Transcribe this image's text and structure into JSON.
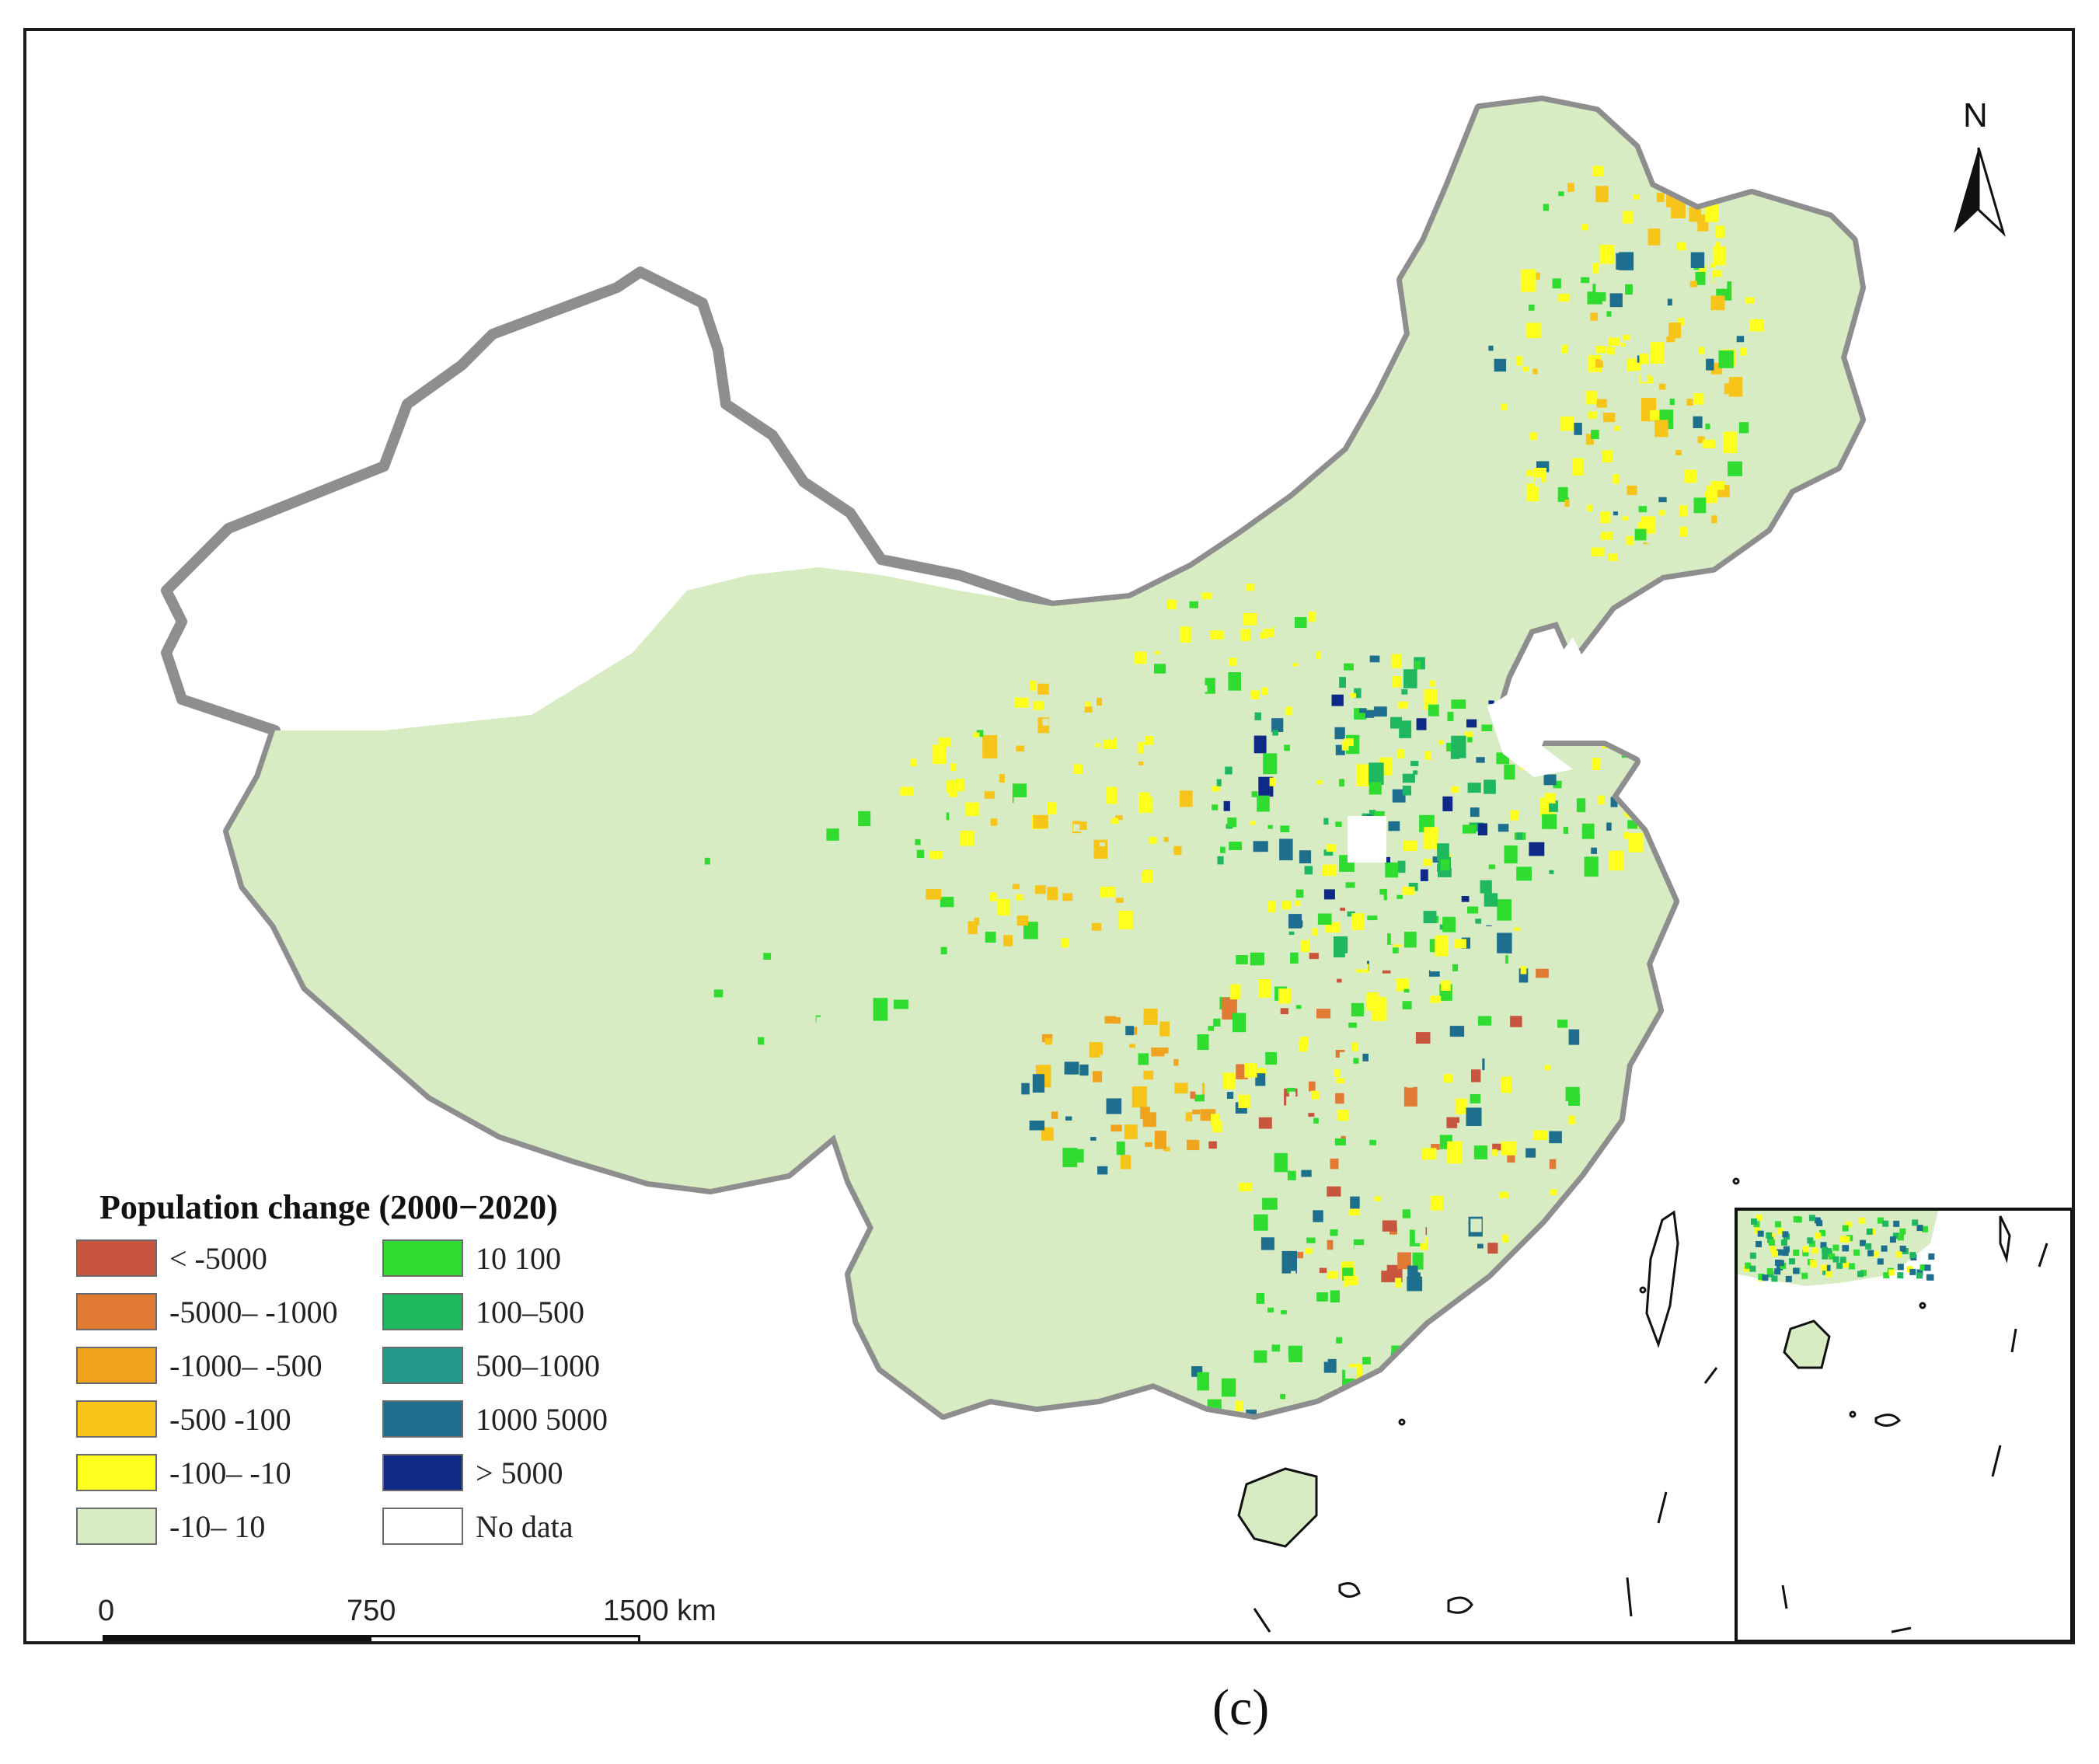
{
  "map": {
    "north_label": "N",
    "legend": {
      "title": "Population change (2000−2020)",
      "items": [
        {
          "label": "< -5000",
          "color": "#c8553d"
        },
        {
          "label": "-5000– -1000",
          "color": "#e07a35"
        },
        {
          "label": "-1000– -500",
          "color": "#f0a31c"
        },
        {
          "label": "-500   -100",
          "color": "#f7c41a"
        },
        {
          "label": "-100– -10",
          "color": "#ffff1e"
        },
        {
          "label": "-10– 10",
          "color": "#d8ecc4"
        },
        {
          "label": "10   100",
          "color": "#2fdc2f"
        },
        {
          "label": "100–500",
          "color": "#1fb85e"
        },
        {
          "label": "500–1000",
          "color": "#22998a"
        },
        {
          "label": "1000  5000",
          "color": "#1e6e8e"
        },
        {
          "label": "> 5000",
          "color": "#0e2a86"
        },
        {
          "label": "No data",
          "color": "#ffffff"
        }
      ]
    },
    "scale_bar": {
      "ticks": [
        "0",
        "750",
        "1500"
      ],
      "unit": "km"
    },
    "colors": {
      "border": "#8e8e8e",
      "land_base": "#d8ecc4",
      "no_data": "#ffffff"
    }
  },
  "panel_label": "(c)"
}
